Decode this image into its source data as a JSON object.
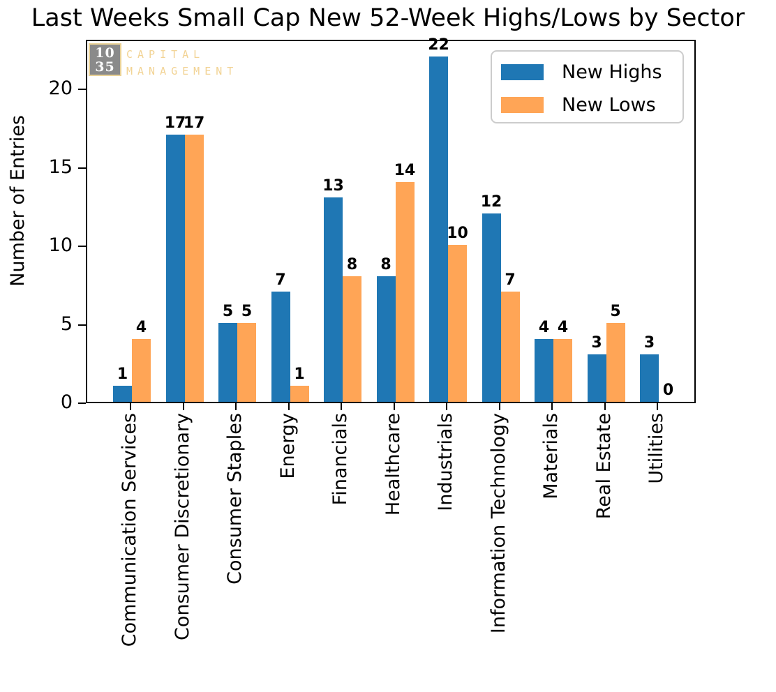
{
  "title": "Last Weeks Small Cap New 52-Week Highs/Lows by Sector",
  "logo": {
    "box_line1": "10",
    "box_line2": "35",
    "text_line1": "CAPITAL",
    "text_line2": "MANAGEMENT",
    "box_color": "#8a8a8a",
    "accent_color": "#f2d394"
  },
  "legend": {
    "items": [
      {
        "label": "New Highs",
        "color": "#1f77b4"
      },
      {
        "label": "New Lows",
        "color": "#ffa556"
      }
    ]
  },
  "y_axis": {
    "label": "Number of Entries"
  },
  "chart_data": {
    "type": "bar",
    "title": "Last Weeks Small Cap New 52-Week Highs/Lows by Sector",
    "xlabel": "",
    "ylabel": "Number of Entries",
    "categories": [
      "Communication Services",
      "Consumer Discretionary",
      "Consumer Staples",
      "Energy",
      "Financials",
      "Healthcare",
      "Industrials",
      "Information Technology",
      "Materials",
      "Real Estate",
      "Utilities"
    ],
    "series": [
      {
        "name": "New Highs",
        "color": "#1f77b4",
        "values": [
          1,
          17,
          5,
          7,
          13,
          8,
          22,
          12,
          4,
          3,
          3
        ]
      },
      {
        "name": "New Lows",
        "color": "#ffa556",
        "values": [
          4,
          17,
          5,
          1,
          8,
          14,
          10,
          7,
          4,
          5,
          0
        ]
      }
    ],
    "bar_value_labels": true,
    "yticks": [
      0,
      5,
      10,
      15,
      20
    ],
    "ylim": [
      0,
      23.2
    ],
    "grid": false,
    "legend_position": "upper right",
    "xtick_rotation": 90
  },
  "colors": {
    "axis": "#000000",
    "background": "#ffffff"
  }
}
